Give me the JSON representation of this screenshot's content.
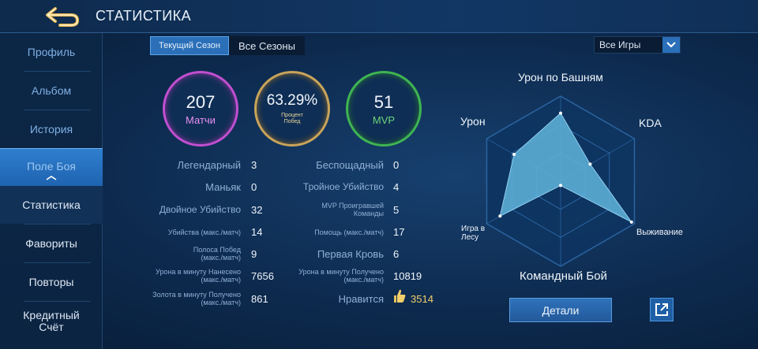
{
  "header": {
    "title": "СТАТИСТИКА"
  },
  "sidebar": {
    "items": [
      {
        "label": "Профиль"
      },
      {
        "label": "Альбом"
      },
      {
        "label": "История"
      },
      {
        "label": "Поле Боя"
      },
      {
        "label": "Статистика"
      },
      {
        "label": "Фавориты"
      },
      {
        "label": "Повторы"
      },
      {
        "label": "Кредитный Счёт"
      }
    ]
  },
  "tabs": {
    "current": "Текущий Сезон",
    "all": "Все Сезоны"
  },
  "filter": {
    "value": "Все Игры"
  },
  "rings": {
    "matches": {
      "value": "207",
      "label": "Матчи",
      "color": "#c24fd0"
    },
    "winrate": {
      "value": "63.29%",
      "label": "Процент Побед",
      "color": "#c9a45a"
    },
    "mvp": {
      "value": "51",
      "label": "MVP",
      "color": "#3fb552"
    }
  },
  "stats_left": [
    {
      "label": "Легендарный",
      "value": "3"
    },
    {
      "label": "Маньяк",
      "value": "0"
    },
    {
      "label": "Двойное Убийство",
      "value": "32"
    },
    {
      "label": "Убийства (макс./матч)",
      "value": "14"
    },
    {
      "label": "Полоса Побед (макс./матч)",
      "value": "9"
    },
    {
      "label": "Урона в минуту Нанесено (макс./матч)",
      "value": "7656"
    },
    {
      "label": "Золота в минуту Получено (макс./матч)",
      "value": "861"
    }
  ],
  "stats_right": [
    {
      "label": "Беспощадный",
      "value": "0"
    },
    {
      "label": "Тройное Убийство",
      "value": "4"
    },
    {
      "label": "MVP Проигравшей Команды",
      "value": "5"
    },
    {
      "label": "Помощь (макс./матч)",
      "value": "17"
    },
    {
      "label": "Первая Кровь",
      "value": "6"
    },
    {
      "label": "Урона в минуту Получено (макс./матч)",
      "value": "10819"
    },
    {
      "label": "Нравится",
      "value": "3514"
    }
  ],
  "radar": {
    "axes": [
      {
        "label": "Урон по Башням",
        "value": 0.8
      },
      {
        "label": "KDA",
        "value": 0.4
      },
      {
        "label": "Выживание",
        "value": 0.96
      },
      {
        "label": "Командный Бой",
        "value": 0.05
      },
      {
        "label": "Игра в Лесу",
        "value": 0.82
      },
      {
        "label": "Урон",
        "value": 0.63
      }
    ],
    "fill_color": "#5fb4dc"
  },
  "buttons": {
    "details": "Детали"
  }
}
